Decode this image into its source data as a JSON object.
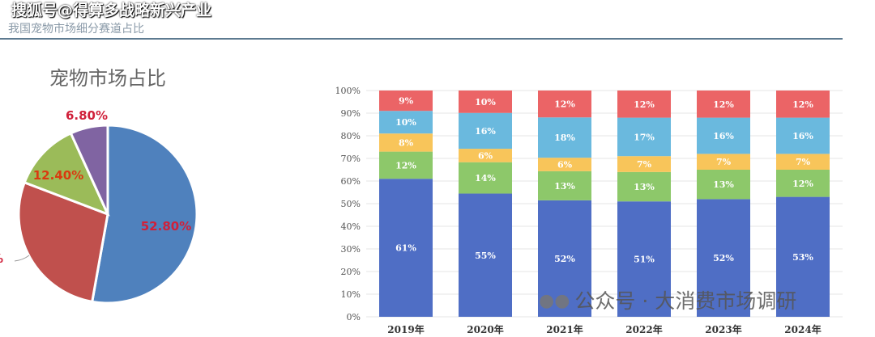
{
  "header": {
    "watermark": "搜狐号@得算多战略新兴产业",
    "subtitle": "我国宠物市场细分赛道占比"
  },
  "footer": {
    "watermark": "公众号 · 大消费市场调研"
  },
  "chart_data": [
    {
      "type": "pie",
      "title": "宠物市场占比",
      "slices": [
        {
          "value": 52.8,
          "label": "52.80%",
          "color": "#4f81bd"
        },
        {
          "value": 28.0,
          "label": "%",
          "color": "#c0504d"
        },
        {
          "value": 12.4,
          "label": "12.40%",
          "color": "#9bbb59"
        },
        {
          "value": 6.8,
          "label": "6.80%",
          "color": "#8064a2"
        }
      ]
    },
    {
      "type": "bar",
      "stacked": true,
      "categories": [
        "2019年",
        "2020年",
        "2021年",
        "2022年",
        "2023年",
        "2024年"
      ],
      "yticks": [
        "0%",
        "10%",
        "20%",
        "30%",
        "40%",
        "50%",
        "60%",
        "70%",
        "80%",
        "90%",
        "100%"
      ],
      "ylim": [
        0,
        100
      ],
      "series": [
        {
          "color": "#4f6ec5",
          "values": [
            61,
            55,
            52,
            51,
            52,
            53
          ]
        },
        {
          "color": "#8dc86a",
          "values": [
            12,
            14,
            13,
            13,
            13,
            12
          ]
        },
        {
          "color": "#f8c55a",
          "values": [
            8,
            6,
            6,
            7,
            7,
            7
          ]
        },
        {
          "color": "#6ab9de",
          "values": [
            10,
            16,
            18,
            17,
            16,
            16
          ]
        },
        {
          "color": "#eb6466",
          "values": [
            9,
            10,
            12,
            12,
            12,
            12
          ]
        }
      ]
    }
  ]
}
